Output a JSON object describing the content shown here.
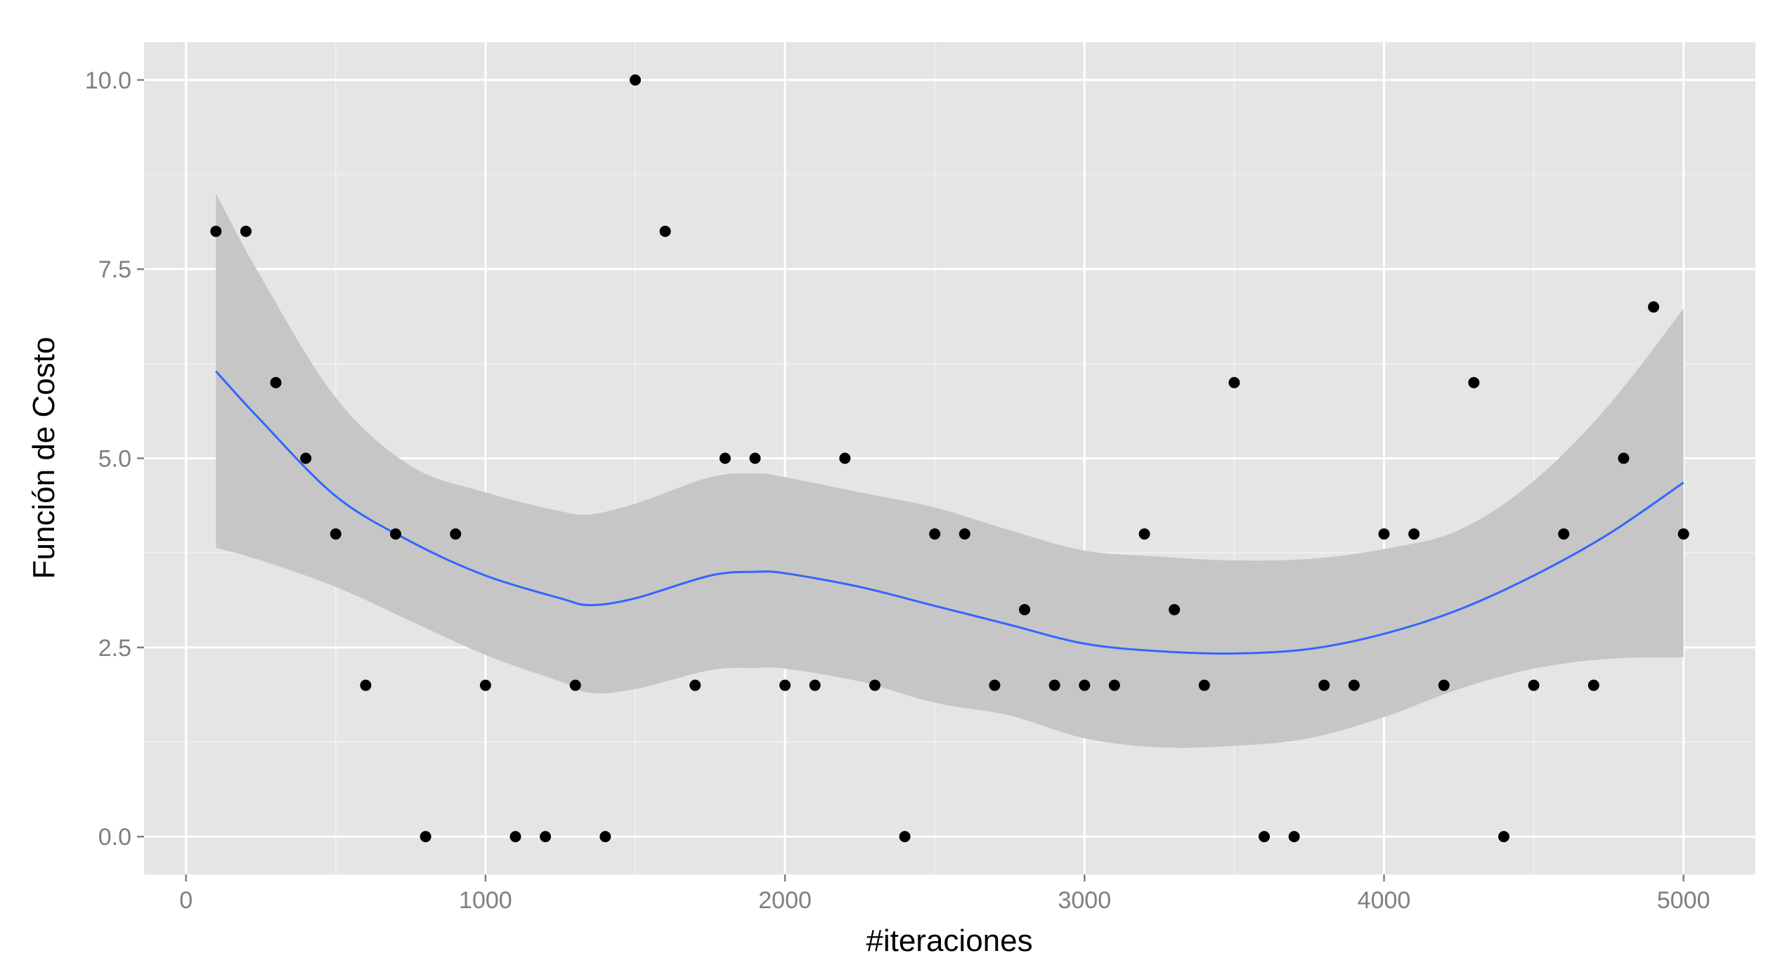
{
  "chart_data": {
    "type": "scatter",
    "xlabel": "#iteraciones",
    "ylabel": "Función de Costo",
    "xlim": [
      -140,
      5240
    ],
    "ylim": [
      -0.5,
      10.5
    ],
    "x_ticks": [
      0,
      1000,
      2000,
      3000,
      4000,
      5000
    ],
    "x_tick_labels": [
      "0",
      "1000",
      "2000",
      "3000",
      "4000",
      "5000"
    ],
    "y_ticks": [
      0,
      2.5,
      5,
      7.5,
      10
    ],
    "y_tick_labels": [
      "0.0",
      "2.5",
      "5.0",
      "7.5",
      "10.0"
    ],
    "grid": true,
    "colors": {
      "panel": "#e5e5e5",
      "grid": "#ffffff",
      "points": "#000000",
      "smooth_line": "#3366ff",
      "ribbon": "#c6c6c6"
    },
    "points": {
      "x": [
        100,
        200,
        300,
        400,
        500,
        600,
        700,
        800,
        900,
        1000,
        1100,
        1200,
        1300,
        1400,
        1500,
        1600,
        1700,
        1800,
        1900,
        2000,
        2100,
        2200,
        2300,
        2400,
        2500,
        2600,
        2700,
        2800,
        2900,
        3000,
        3100,
        3200,
        3300,
        3400,
        3500,
        3600,
        3700,
        3800,
        3900,
        4000,
        4100,
        4200,
        4300,
        4400,
        4500,
        4600,
        4700,
        4800,
        4900,
        5000
      ],
      "y": [
        8,
        8,
        6,
        5,
        4,
        2,
        4,
        0,
        4,
        2,
        0,
        0,
        2,
        0,
        10,
        8,
        2,
        5,
        5,
        2,
        2,
        5,
        2,
        0,
        4,
        4,
        2,
        3,
        2,
        2,
        2,
        4,
        3,
        2,
        6,
        0,
        0,
        2,
        2,
        4,
        4,
        2,
        6,
        0,
        2,
        4,
        2,
        5,
        7,
        4
      ]
    },
    "smooth": {
      "x": [
        100,
        250,
        500,
        750,
        1000,
        1250,
        1350,
        1500,
        1750,
        1900,
        2000,
        2250,
        2500,
        2750,
        3000,
        3250,
        3500,
        3750,
        4000,
        4250,
        4500,
        4750,
        5000
      ],
      "y": [
        6.15,
        5.5,
        4.5,
        3.9,
        3.45,
        3.15,
        3.06,
        3.15,
        3.45,
        3.5,
        3.48,
        3.3,
        3.05,
        2.8,
        2.55,
        2.45,
        2.42,
        2.48,
        2.68,
        3.0,
        3.45,
        4.0,
        4.68
      ],
      "lower": [
        3.82,
        3.65,
        3.3,
        2.85,
        2.4,
        2.05,
        1.9,
        1.95,
        2.2,
        2.23,
        2.22,
        2.05,
        1.77,
        1.6,
        1.3,
        1.18,
        1.2,
        1.3,
        1.58,
        1.95,
        2.22,
        2.35,
        2.37
      ],
      "upper": [
        8.5,
        7.4,
        5.8,
        4.9,
        4.55,
        4.3,
        4.26,
        4.4,
        4.75,
        4.8,
        4.75,
        4.55,
        4.35,
        4.05,
        3.78,
        3.7,
        3.65,
        3.67,
        3.8,
        4.05,
        4.7,
        5.7,
        6.98
      ]
    }
  }
}
